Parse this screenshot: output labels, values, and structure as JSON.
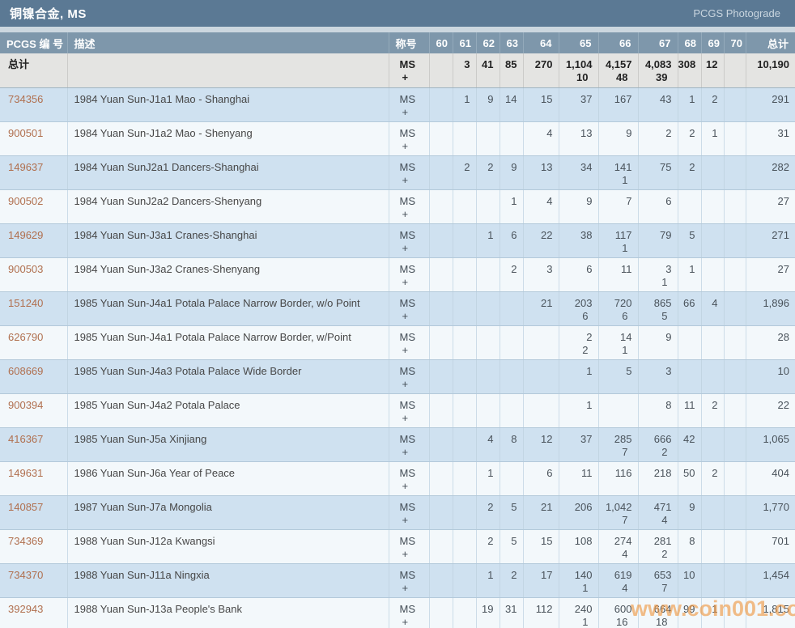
{
  "titlebar": {
    "title": "铜镍合金, MS",
    "photograde_link": "PCGS Photograde"
  },
  "watermark": {
    "text": "www.coin001.com"
  },
  "colors": {
    "titlebar_bg": "#5b7994",
    "header_bg": "#7e97ab",
    "row_blue": "#cfe1f0",
    "row_white": "#f3f8fb",
    "totals_bg": "#e4e4e2",
    "pcgs_link": "#b06f4e",
    "watermark": "#ef9740"
  },
  "table": {
    "columns": {
      "pcgs": "PCGS 编 号",
      "desc": "描述",
      "designation": "称号",
      "total": "总计"
    },
    "grade_headers": [
      "60",
      "61",
      "62",
      "63",
      "64",
      "65",
      "66",
      "67",
      "68",
      "69",
      "70"
    ],
    "designation": {
      "ms": "MS",
      "plus": "+"
    },
    "totals_row": {
      "label": "总计",
      "desc": "",
      "ms": [
        "",
        "3",
        "41",
        "85",
        "270",
        "1,104",
        "4,157",
        "4,083",
        "308",
        "12",
        ""
      ],
      "plus": [
        "",
        "",
        "",
        "",
        "",
        "10",
        "48",
        "39",
        "",
        "",
        ""
      ],
      "total": "10,190"
    },
    "rows": [
      {
        "pcgs": "734356",
        "desc": "1984 Yuan Sun-J1a1 Mao - Shanghai",
        "ms": [
          "",
          "1",
          "9",
          "14",
          "15",
          "37",
          "167",
          "43",
          "1",
          "2",
          ""
        ],
        "plus": [
          "",
          "",
          "",
          "",
          "",
          "",
          "",
          "",
          "",
          "",
          ""
        ],
        "total": "291"
      },
      {
        "pcgs": "900501",
        "desc": "1984 Yuan Sun-J1a2 Mao - Shenyang",
        "ms": [
          "",
          "",
          "",
          "",
          "4",
          "13",
          "9",
          "2",
          "2",
          "1",
          ""
        ],
        "plus": [
          "",
          "",
          "",
          "",
          "",
          "",
          "",
          "",
          "",
          "",
          ""
        ],
        "total": "31"
      },
      {
        "pcgs": "149637",
        "desc": "1984 Yuan SunJ2a1 Dancers-Shanghai",
        "ms": [
          "",
          "2",
          "2",
          "9",
          "13",
          "34",
          "141",
          "75",
          "2",
          "",
          ""
        ],
        "plus": [
          "",
          "",
          "",
          "",
          "",
          "",
          "1",
          "",
          "",
          "",
          ""
        ],
        "total": "282"
      },
      {
        "pcgs": "900502",
        "desc": "1984 Yuan SunJ2a2 Dancers-Shenyang",
        "ms": [
          "",
          "",
          "",
          "1",
          "4",
          "9",
          "7",
          "6",
          "",
          "",
          ""
        ],
        "plus": [
          "",
          "",
          "",
          "",
          "",
          "",
          "",
          "",
          "",
          "",
          ""
        ],
        "total": "27"
      },
      {
        "pcgs": "149629",
        "desc": "1984 Yuan Sun-J3a1 Cranes-Shanghai",
        "ms": [
          "",
          "",
          "1",
          "6",
          "22",
          "38",
          "117",
          "79",
          "5",
          "",
          ""
        ],
        "plus": [
          "",
          "",
          "",
          "",
          "",
          "",
          "1",
          "",
          "",
          "",
          ""
        ],
        "total": "271"
      },
      {
        "pcgs": "900503",
        "desc": "1984 Yuan Sun-J3a2 Cranes-Shenyang",
        "ms": [
          "",
          "",
          "",
          "2",
          "3",
          "6",
          "11",
          "3",
          "1",
          "",
          ""
        ],
        "plus": [
          "",
          "",
          "",
          "",
          "",
          "",
          "",
          "1",
          "",
          "",
          ""
        ],
        "total": "27"
      },
      {
        "pcgs": "151240",
        "desc": "1985 Yuan Sun-J4a1 Potala Palace Narrow Border, w/o Point",
        "ms": [
          "",
          "",
          "",
          "",
          "21",
          "203",
          "720",
          "865",
          "66",
          "4",
          ""
        ],
        "plus": [
          "",
          "",
          "",
          "",
          "",
          "6",
          "6",
          "5",
          "",
          "",
          ""
        ],
        "total": "1,896"
      },
      {
        "pcgs": "626790",
        "desc": "1985 Yuan Sun-J4a1 Potala Palace Narrow Border, w/Point",
        "ms": [
          "",
          "",
          "",
          "",
          "",
          "2",
          "14",
          "9",
          "",
          "",
          ""
        ],
        "plus": [
          "",
          "",
          "",
          "",
          "",
          "2",
          "1",
          "",
          "",
          "",
          ""
        ],
        "total": "28"
      },
      {
        "pcgs": "608669",
        "desc": "1985 Yuan Sun-J4a3 Potala Palace Wide Border",
        "ms": [
          "",
          "",
          "",
          "",
          "",
          "1",
          "5",
          "3",
          "",
          "",
          ""
        ],
        "plus": [
          "",
          "",
          "",
          "",
          "",
          "",
          "",
          "",
          "",
          "",
          ""
        ],
        "total": "10"
      },
      {
        "pcgs": "900394",
        "desc": "1985 Yuan Sun-J4a2 Potala Palace",
        "ms": [
          "",
          "",
          "",
          "",
          "",
          "1",
          "",
          "8",
          "11",
          "2",
          ""
        ],
        "plus": [
          "",
          "",
          "",
          "",
          "",
          "",
          "",
          "",
          "",
          "",
          ""
        ],
        "total": "22"
      },
      {
        "pcgs": "416367",
        "desc": "1985 Yuan Sun-J5a Xinjiang",
        "ms": [
          "",
          "",
          "4",
          "8",
          "12",
          "37",
          "285",
          "666",
          "42",
          "",
          ""
        ],
        "plus": [
          "",
          "",
          "",
          "",
          "",
          "",
          "7",
          "2",
          "",
          "",
          ""
        ],
        "total": "1,065"
      },
      {
        "pcgs": "149631",
        "desc": "1986 Yuan Sun-J6a Year of Peace",
        "ms": [
          "",
          "",
          "1",
          "",
          "6",
          "11",
          "116",
          "218",
          "50",
          "2",
          ""
        ],
        "plus": [
          "",
          "",
          "",
          "",
          "",
          "",
          "",
          "",
          "",
          "",
          ""
        ],
        "total": "404"
      },
      {
        "pcgs": "140857",
        "desc": "1987 Yuan Sun-J7a Mongolia",
        "ms": [
          "",
          "",
          "2",
          "5",
          "21",
          "206",
          "1,042",
          "471",
          "9",
          "",
          ""
        ],
        "plus": [
          "",
          "",
          "",
          "",
          "",
          "",
          "7",
          "4",
          "",
          "",
          ""
        ],
        "total": "1,770"
      },
      {
        "pcgs": "734369",
        "desc": "1988 Yuan Sun-J12a Kwangsi",
        "ms": [
          "",
          "",
          "2",
          "5",
          "15",
          "108",
          "274",
          "281",
          "8",
          "",
          ""
        ],
        "plus": [
          "",
          "",
          "",
          "",
          "",
          "",
          "4",
          "2",
          "",
          "",
          ""
        ],
        "total": "701"
      },
      {
        "pcgs": "734370",
        "desc": "1988 Yuan Sun-J11a Ningxia",
        "ms": [
          "",
          "",
          "1",
          "2",
          "17",
          "140",
          "619",
          "653",
          "10",
          "",
          ""
        ],
        "plus": [
          "",
          "",
          "",
          "",
          "",
          "1",
          "4",
          "7",
          "",
          "",
          ""
        ],
        "total": "1,454"
      },
      {
        "pcgs": "392943",
        "desc": "1988 Yuan Sun-J13a People's Bank",
        "ms": [
          "",
          "",
          "19",
          "31",
          "112",
          "240",
          "600",
          "664",
          "99",
          "1",
          ""
        ],
        "plus": [
          "",
          "",
          "",
          "",
          "",
          "1",
          "16",
          "18",
          "",
          "",
          ""
        ],
        "total": "1,815"
      }
    ]
  }
}
